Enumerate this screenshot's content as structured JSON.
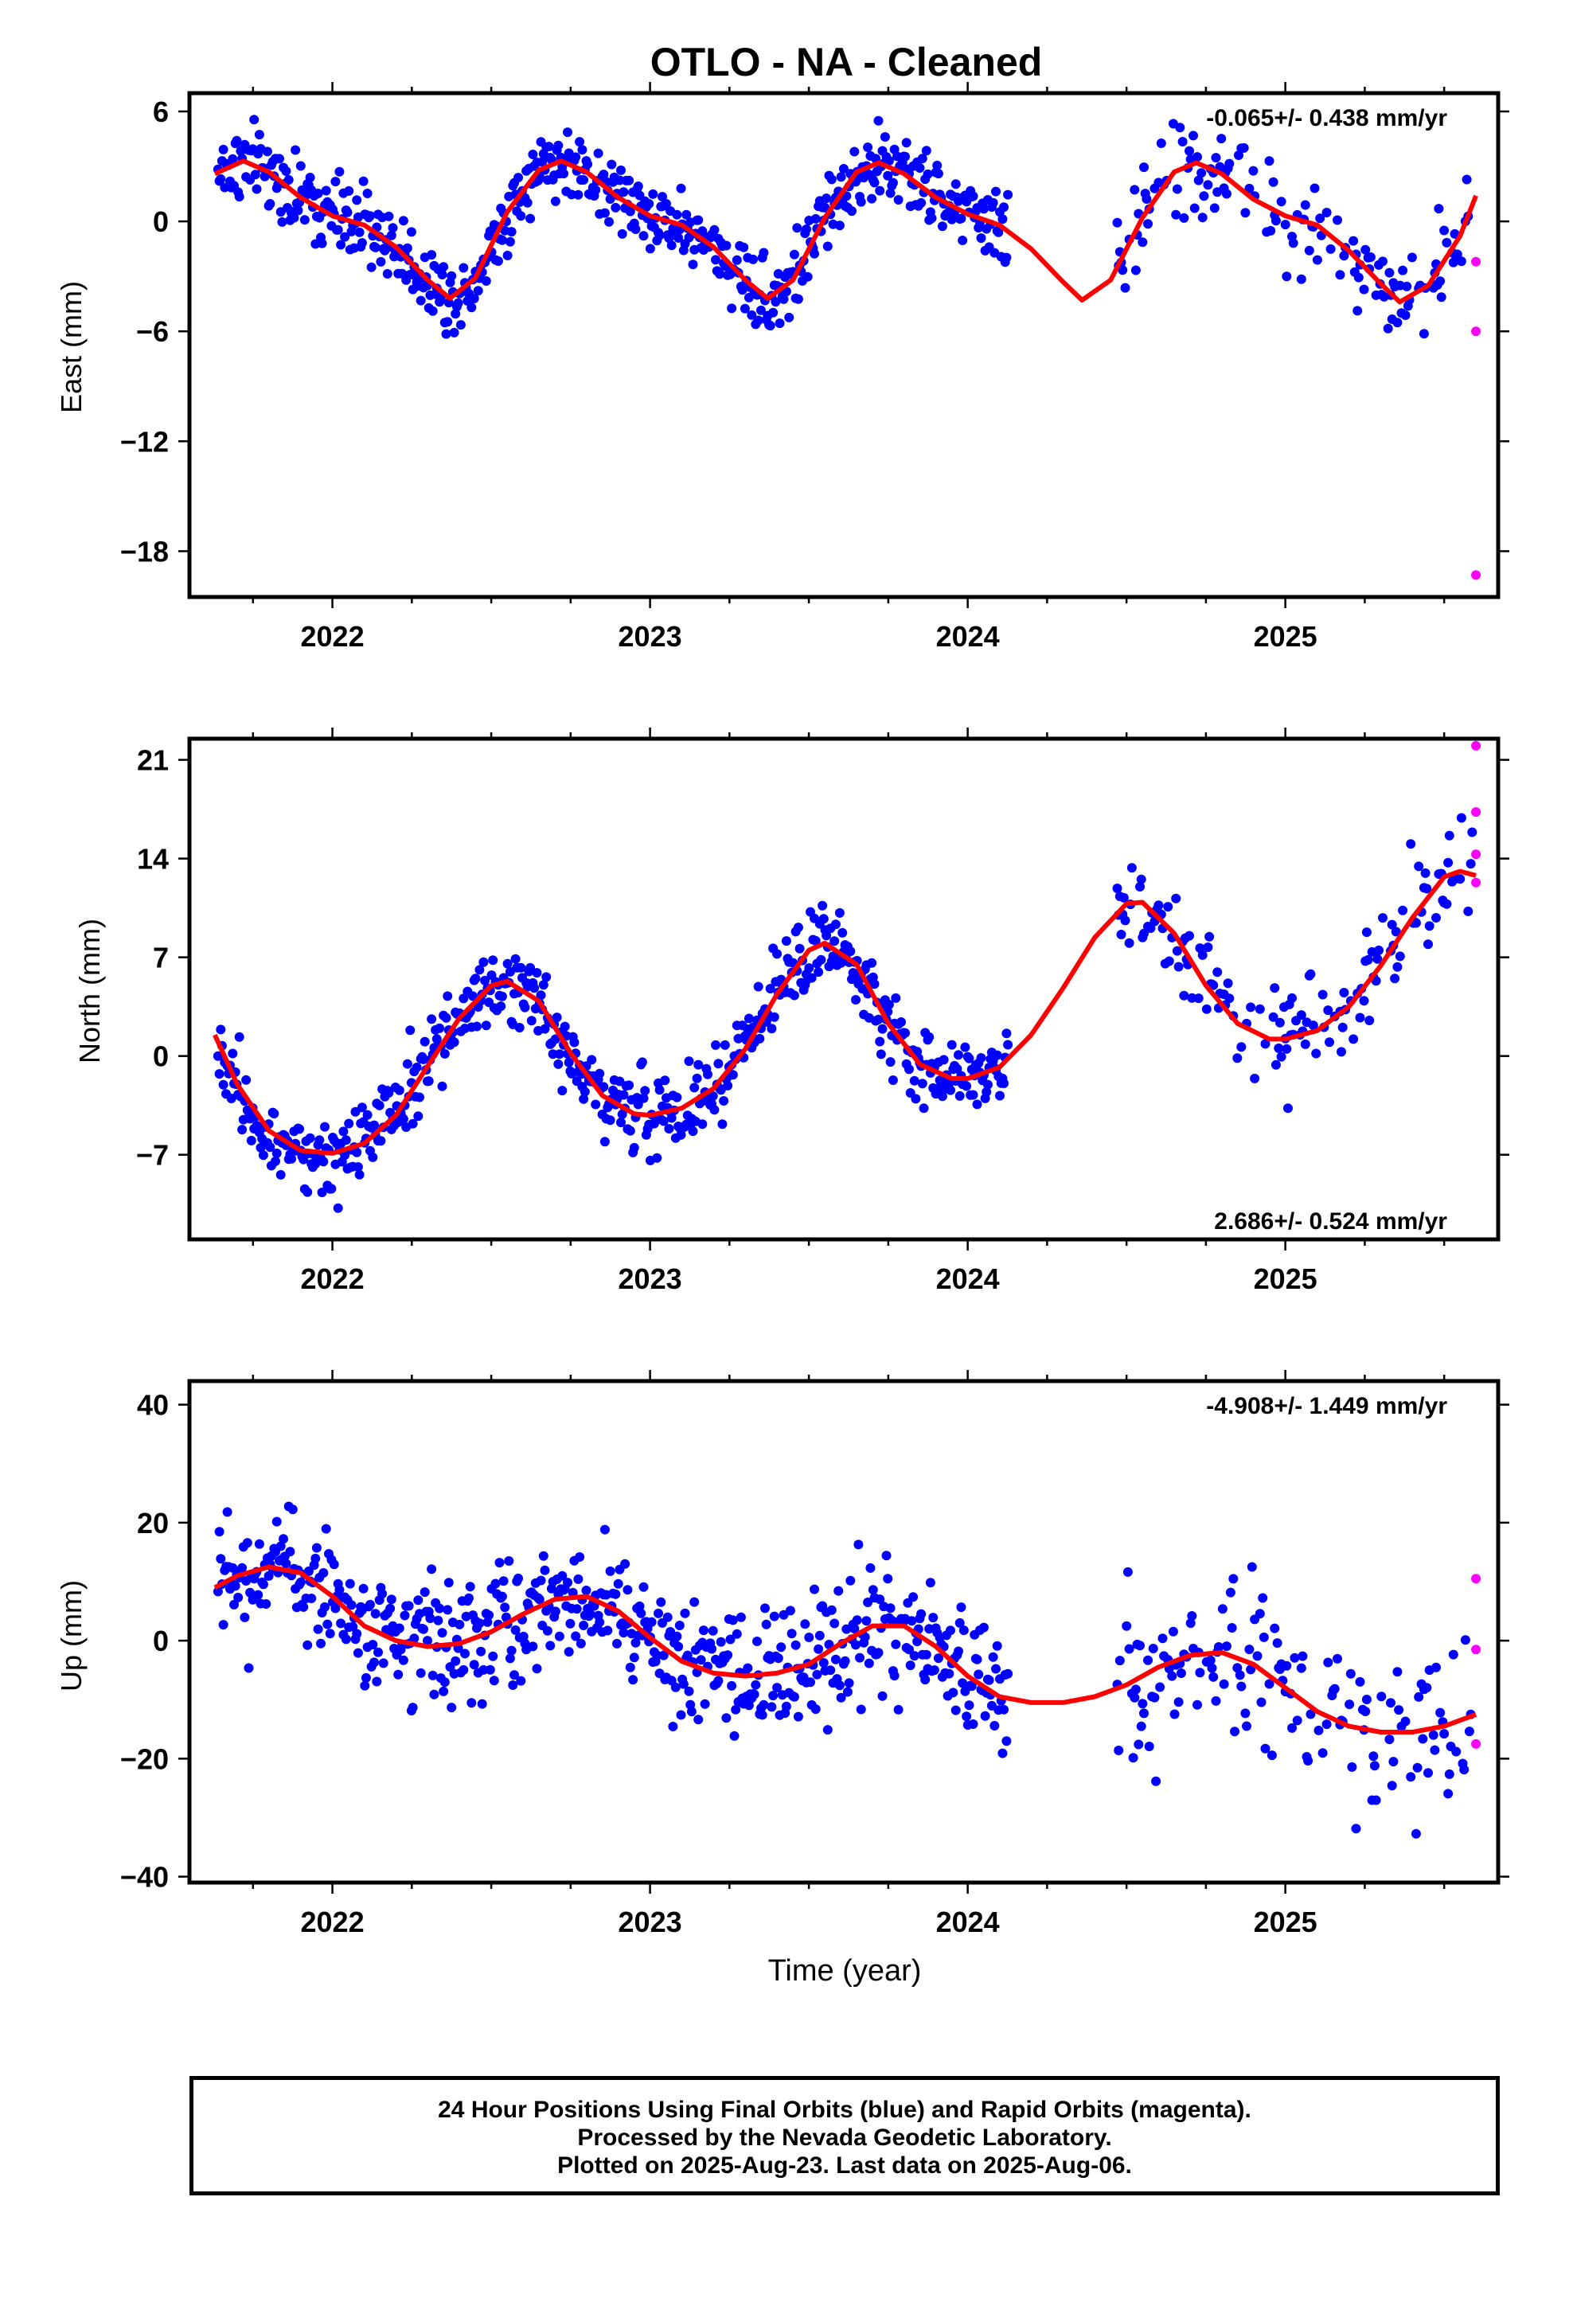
{
  "figure": {
    "title": "OTLO  - NA - Cleaned",
    "xlabel": "Time (year)",
    "footer": [
      "24 Hour Positions Using Final Orbits (blue) and Rapid Orbits (magenta).",
      "Processed by the Nevada Geodetic Laboratory.",
      "Plotted on 2025-Aug-23. Last data on 2025-Aug-06."
    ],
    "colors": {
      "final": "#0000ff",
      "rapid": "#ff00ff",
      "model": "#ff0000",
      "frame": "#000000"
    }
  },
  "chart_data": [
    {
      "type": "scatter",
      "component": "East",
      "ylabel": "East (mm)",
      "rate_label": "-0.065+/- 0.438 mm/yr",
      "xlim": [
        2021.55,
        2025.67
      ],
      "ylim": [
        -20.5,
        7
      ],
      "xticks": [
        2022,
        2023,
        2024,
        2025
      ],
      "xtick_labels": [
        "2022",
        "2023",
        "2024",
        "2025"
      ],
      "yticks": [
        6,
        0,
        -6,
        -12,
        -18
      ],
      "ytick_labels": [
        "6",
        "0",
        "−6",
        "−12",
        "−18"
      ],
      "model": {
        "x": [
          2021.63,
          2021.72,
          2021.8,
          2021.9,
          2022.0,
          2022.1,
          2022.2,
          2022.3,
          2022.37,
          2022.45,
          2022.55,
          2022.65,
          2022.72,
          2022.8,
          2022.9,
          2023.0,
          2023.1,
          2023.2,
          2023.3,
          2023.37,
          2023.45,
          2023.55,
          2023.65,
          2023.72,
          2023.8,
          2023.9,
          2024.0,
          2024.1,
          2024.2,
          2024.3,
          2024.36,
          2024.45,
          2024.55,
          2024.65,
          2024.72,
          2024.8,
          2024.9,
          2025.0,
          2025.1,
          2025.2,
          2025.3,
          2025.36,
          2025.45,
          2025.55,
          2025.6
        ],
        "y": [
          2.6,
          3.3,
          2.7,
          1.3,
          0.3,
          -0.2,
          -1.4,
          -3.2,
          -4.2,
          -3.1,
          0.5,
          2.8,
          3.3,
          2.7,
          1.3,
          0.3,
          -0.2,
          -1.4,
          -3.2,
          -4.2,
          -3.2,
          0.2,
          2.7,
          3.2,
          2.6,
          1.3,
          0.4,
          -0.2,
          -1.5,
          -3.3,
          -4.3,
          -3.2,
          0.2,
          2.7,
          3.2,
          2.6,
          1.2,
          0.3,
          -0.2,
          -1.6,
          -3.4,
          -4.4,
          -3.5,
          -0.8,
          1.4
        ]
      },
      "rapid": {
        "x": [
          2025.6,
          2025.6,
          2025.6
        ],
        "y": [
          -2.2,
          -6,
          -19.3
        ]
      }
    },
    {
      "type": "scatter",
      "component": "North",
      "ylabel": "North (mm)",
      "rate_label": "2.686+/- 0.524 mm/yr",
      "xlim": [
        2021.55,
        2025.67
      ],
      "ylim": [
        -13,
        22.5
      ],
      "xticks": [
        2022,
        2023,
        2024,
        2025
      ],
      "xtick_labels": [
        "2022",
        "2023",
        "2024",
        "2025"
      ],
      "yticks": [
        21,
        14,
        7,
        0,
        -7
      ],
      "ytick_labels": [
        "21",
        "14",
        "7",
        "0",
        "−7"
      ],
      "model": {
        "x": [
          2021.63,
          2021.7,
          2021.8,
          2021.9,
          2022.0,
          2022.1,
          2022.2,
          2022.3,
          2022.4,
          2022.5,
          2022.55,
          2022.65,
          2022.75,
          2022.85,
          2022.95,
          2023.0,
          2023.1,
          2023.2,
          2023.3,
          2023.4,
          2023.5,
          2023.55,
          2023.65,
          2023.75,
          2023.85,
          2023.95,
          2024.0,
          2024.1,
          2024.2,
          2024.3,
          2024.4,
          2024.5,
          2024.55,
          2024.65,
          2024.75,
          2024.85,
          2024.95,
          2025.0,
          2025.1,
          2025.2,
          2025.3,
          2025.4,
          2025.5,
          2025.55,
          2025.6
        ],
        "y": [
          1.5,
          -2,
          -5.3,
          -6.7,
          -6.9,
          -6.2,
          -4.2,
          -0.7,
          2.7,
          5,
          5.3,
          3.9,
          0.2,
          -2.8,
          -4.1,
          -4.2,
          -3.7,
          -2.3,
          0.5,
          4.4,
          7.5,
          8,
          6.5,
          2.3,
          -0.6,
          -1.6,
          -1.6,
          -0.8,
          1.5,
          4.8,
          8.4,
          10.8,
          10.9,
          8.7,
          5,
          2.3,
          1.2,
          1.2,
          1.8,
          3.5,
          6.4,
          9.8,
          12.7,
          13.1,
          12.8
        ]
      },
      "rapid": {
        "x": [
          2025.6,
          2025.6,
          2025.6,
          2025.6
        ],
        "y": [
          22,
          17.3,
          14.3,
          12.3
        ]
      }
    },
    {
      "type": "scatter",
      "component": "Up",
      "ylabel": "Up (mm)",
      "rate_label": "-4.908+/- 1.449 mm/yr",
      "xlim": [
        2021.55,
        2025.67
      ],
      "ylim": [
        -41,
        44
      ],
      "xticks": [
        2022,
        2023,
        2024,
        2025
      ],
      "xtick_labels": [
        "2022",
        "2023",
        "2024",
        "2025"
      ],
      "yticks": [
        40,
        20,
        0,
        -20,
        -40
      ],
      "ytick_labels": [
        "40",
        "20",
        "0",
        "−20",
        "−40"
      ],
      "model": {
        "x": [
          2021.63,
          2021.7,
          2021.8,
          2021.9,
          2022.0,
          2022.1,
          2022.2,
          2022.3,
          2022.4,
          2022.5,
          2022.6,
          2022.7,
          2022.8,
          2022.9,
          2023.0,
          2023.1,
          2023.2,
          2023.3,
          2023.4,
          2023.5,
          2023.6,
          2023.7,
          2023.8,
          2023.9,
          2024.0,
          2024.1,
          2024.2,
          2024.3,
          2024.4,
          2024.5,
          2024.6,
          2024.7,
          2024.8,
          2024.9,
          2025.0,
          2025.1,
          2025.2,
          2025.3,
          2025.4,
          2025.5,
          2025.6
        ],
        "y": [
          9,
          11,
          12.5,
          11.5,
          7.5,
          2.5,
          0,
          -1,
          -0.5,
          1.5,
          4.5,
          7,
          7.5,
          5,
          0.5,
          -3.5,
          -5.5,
          -6,
          -5.5,
          -4,
          -0.5,
          2.5,
          2.5,
          -1,
          -6,
          -9.5,
          -10.5,
          -10.5,
          -9.5,
          -7.5,
          -4.5,
          -2.5,
          -2,
          -4,
          -8,
          -12,
          -14.5,
          -15.5,
          -15.5,
          -14.5,
          -12.5
        ]
      },
      "rapid": {
        "x": [
          2025.6,
          2025.6,
          2025.6
        ],
        "y": [
          10.5,
          -1.5,
          -17.5
        ]
      }
    }
  ]
}
